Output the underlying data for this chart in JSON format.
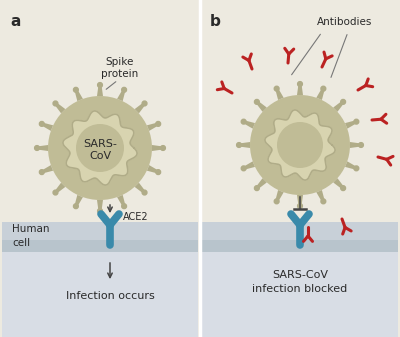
{
  "bg_color": "#edeae0",
  "cell_bar_color_top": "#c8d0d8",
  "cell_bar_color_bot": "#b8c4cc",
  "cell_below_color": "#d8dde5",
  "virus_outer_color": "#c0bc96",
  "virus_inner_color": "#e0dcc0",
  "virus_wavy_color": "#d8d4b0",
  "spike_color": "#b0ac88",
  "ace2_color": "#3a8aaa",
  "antibody_color": "#bb2222",
  "text_color": "#2a2a2a",
  "arrow_color": "#444444",
  "panel_a_label": "a",
  "panel_b_label": "b",
  "spike_label": "Spike\nprotein",
  "virus_label": "SARS-\nCoV",
  "human_cell_label": "Human\ncell",
  "ace2_label": "ACE2",
  "infection_label": "Infection occurs",
  "antibodies_label": "Antibodies",
  "blocked_label": "SARS-CoV\ninfection blocked"
}
